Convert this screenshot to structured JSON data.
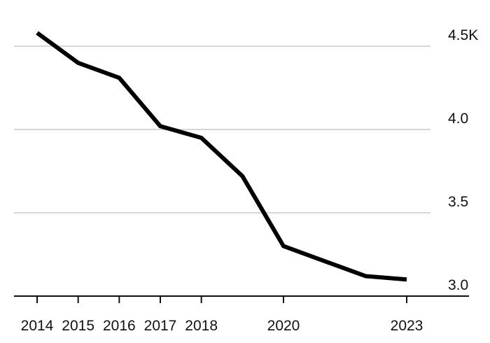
{
  "chart_data": {
    "type": "line",
    "title": "",
    "xlabel": "",
    "ylabel": "",
    "x": [
      2014,
      2015,
      2016,
      2017,
      2018,
      2019,
      2020,
      2021,
      2022,
      2023
    ],
    "series": [
      {
        "values": [
          4.58,
          4.4,
          4.31,
          4.02,
          3.95,
          3.72,
          3.3,
          3.21,
          3.12,
          3.1
        ]
      }
    ],
    "xlim": [
      2014,
      2023
    ],
    "ylim": [
      3.0,
      4.5
    ],
    "y_ticks": [
      {
        "value": 3.0,
        "label": "3.0"
      },
      {
        "value": 3.5,
        "label": "3.5"
      },
      {
        "value": 4.0,
        "label": "4.0"
      },
      {
        "value": 4.5,
        "label": "4.5K"
      }
    ],
    "x_ticks": [
      {
        "value": 2014,
        "label": "2014"
      },
      {
        "value": 2015,
        "label": "2015"
      },
      {
        "value": 2016,
        "label": "2016"
      },
      {
        "value": 2017,
        "label": "2017"
      },
      {
        "value": 2018,
        "label": "2018"
      },
      {
        "value": 2020,
        "label": "2020"
      },
      {
        "value": 2023,
        "label": "2023"
      }
    ],
    "grid": "horizontal",
    "legend": "none",
    "y_axis_position": "right",
    "line_color": "#000000",
    "grid_color": "#d6d6d6"
  }
}
